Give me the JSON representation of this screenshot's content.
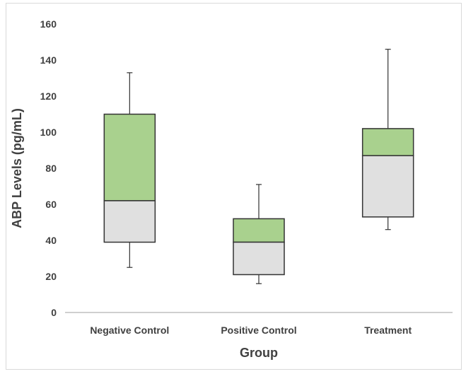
{
  "chart_data": {
    "type": "box",
    "title": "",
    "xlabel": "Group",
    "ylabel": "ABP Levels (pg/mL)",
    "ylim": [
      0,
      160
    ],
    "yticks": [
      0,
      20,
      40,
      60,
      80,
      100,
      120,
      140,
      160
    ],
    "grid": false,
    "categories": [
      "Negative Control",
      "Positive Control",
      "Treatment"
    ],
    "boxes": [
      {
        "category": "Negative Control",
        "min": 25,
        "q1": 39,
        "median": 62,
        "q3": 110,
        "max": 133
      },
      {
        "category": "Positive Control",
        "min": 16,
        "q1": 21,
        "median": 39,
        "q3": 52,
        "max": 71
      },
      {
        "category": "Treatment",
        "min": 46,
        "q1": 53,
        "median": 87,
        "q3": 102,
        "max": 146
      }
    ],
    "colors": {
      "lower_box": "#e0e0e0",
      "upper_box": "#a9d18e",
      "outline": "#333333",
      "axis": "#bfbfbf",
      "text": "#404040"
    }
  }
}
